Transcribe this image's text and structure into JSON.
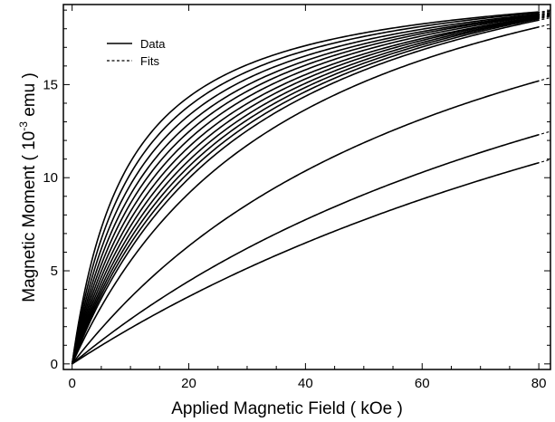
{
  "chart_data": {
    "type": "line",
    "title": "",
    "xlabel": "Applied Magnetic Field ( kOe )",
    "ylabel_prefix": "Magnetic Moment ( 10",
    "ylabel_exp": "-3",
    "ylabel_suffix": " emu )",
    "xlim": [
      -1.5,
      82
    ],
    "ylim": [
      -0.3,
      19.3
    ],
    "xticks": [
      0,
      20,
      40,
      60,
      80
    ],
    "yticks": [
      0,
      5,
      10,
      15
    ],
    "legend": {
      "position": "top-left",
      "entries": [
        {
          "label": "Data",
          "style": "solid"
        },
        {
          "label": "Fits",
          "style": "dashed"
        }
      ]
    },
    "grid": false,
    "curve_model": "M(H) = Ms * H / (H + Hk)",
    "series": [
      {
        "Ms": 21.15,
        "Hk": 9.5
      },
      {
        "Ms": 21.45,
        "Hk": 11.0
      },
      {
        "Ms": 21.75,
        "Hk": 12.6
      },
      {
        "Ms": 22.1,
        "Hk": 14.3
      },
      {
        "Ms": 22.5,
        "Hk": 16.1
      },
      {
        "Ms": 22.9,
        "Hk": 18.0
      },
      {
        "Ms": 23.3,
        "Hk": 20.0
      },
      {
        "Ms": 23.8,
        "Hk": 22.2
      },
      {
        "Ms": 24.3,
        "Hk": 24.5
      },
      {
        "Ms": 24.8,
        "Hk": 26.8
      },
      {
        "Ms": 25.3,
        "Hk": 29.2
      },
      {
        "Ms": 25.8,
        "Hk": 31.8
      },
      {
        "Ms": 26.8,
        "Hk": 38.5
      },
      {
        "Ms": 28.5,
        "Hk": 70.0
      },
      {
        "Ms": 30.0,
        "Hk": 115.0
      },
      {
        "Ms": 32.0,
        "Hk": 157.0
      }
    ],
    "fit_extension_x": [
      0,
      5
    ],
    "fit_tail_x": [
      78,
      82
    ]
  }
}
